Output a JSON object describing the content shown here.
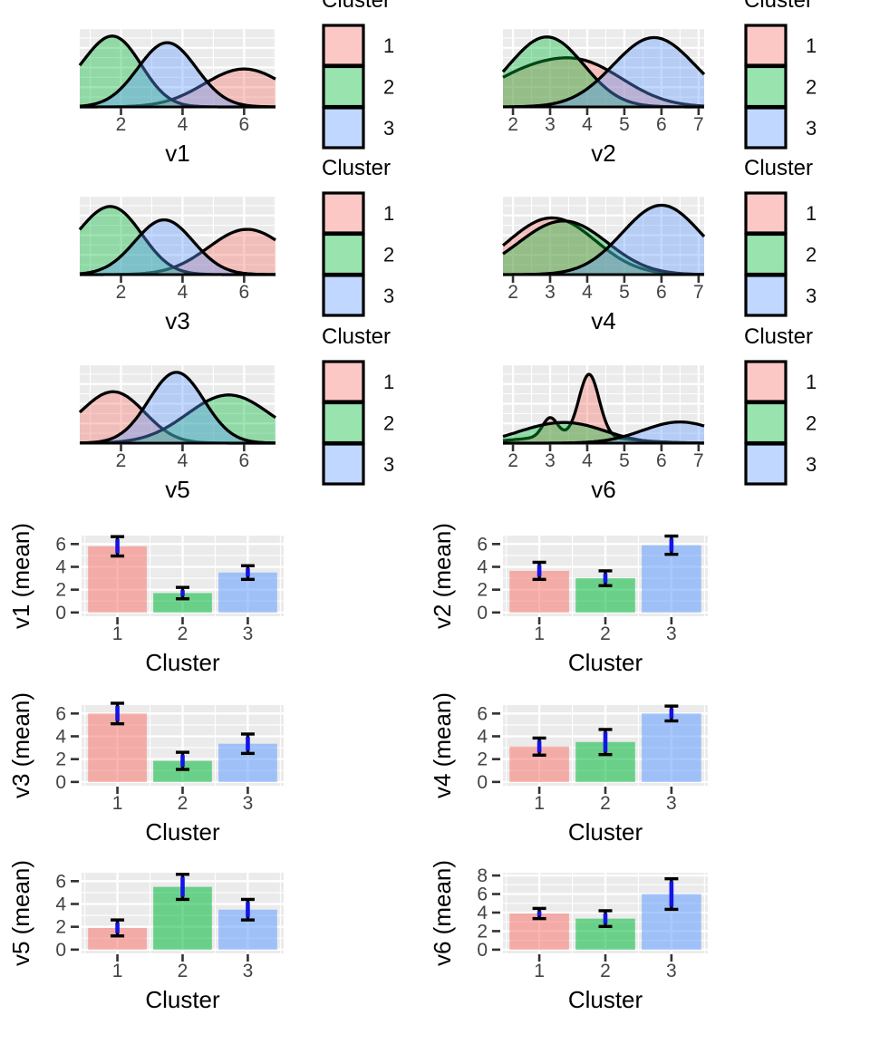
{
  "legend": {
    "title": "Cluster",
    "entries": [
      "1",
      "2",
      "3"
    ]
  },
  "theme": {
    "panel_bg": "#EBEBEB",
    "grid_color": "#FFFFFF",
    "tick_text_color": "#444444",
    "tick_mark_color": "#333333",
    "axis_title_color": "#000000",
    "curve_stroke": "#000000",
    "error_line_color": "#1414E6",
    "error_cap_color": "#000000",
    "cluster_colors": [
      "#F8766D",
      "#00BA38",
      "#619CFF"
    ],
    "density_fill_opacity": 0.38,
    "bar_fill_opacity": 0.55,
    "legend_fill_opacity": 0.4
  },
  "chart_data": [
    {
      "id": "v1",
      "type": "density",
      "xlabel": "v1",
      "col": "left",
      "row": 0,
      "xlim": [
        0.66,
        7.02
      ],
      "xticks": [
        2,
        4,
        6
      ],
      "legend": true,
      "series": [
        {
          "cluster": "1",
          "components": [
            {
              "m": 6.0,
              "s": 1.3,
              "w": 0.52
            }
          ]
        },
        {
          "cluster": "2",
          "components": [
            {
              "m": 1.9,
              "s": 0.85,
              "w": 0.8
            },
            {
              "m": 0.85,
              "s": 0.9,
              "w": 0.3
            }
          ]
        },
        {
          "cluster": "3",
          "components": [
            {
              "m": 3.5,
              "s": 0.95,
              "w": 0.88
            }
          ]
        }
      ]
    },
    {
      "id": "v2",
      "type": "density",
      "xlabel": "v2",
      "col": "right",
      "row": 0,
      "xlim": [
        1.73,
        7.15
      ],
      "xticks": [
        2,
        3,
        4,
        5,
        6,
        7
      ],
      "legend": true,
      "series": [
        {
          "cluster": "1",
          "components": [
            {
              "m": 3.8,
              "s": 1.2,
              "w": 0.6
            },
            {
              "m": 2.0,
              "s": 1.0,
              "w": 0.28
            }
          ]
        },
        {
          "cluster": "2",
          "components": [
            {
              "m": 3.0,
              "s": 0.95,
              "w": 0.9
            },
            {
              "m": 2.0,
              "s": 0.8,
              "w": 0.12
            }
          ]
        },
        {
          "cluster": "3",
          "components": [
            {
              "m": 5.8,
              "s": 1.1,
              "w": 0.95
            }
          ]
        }
      ]
    },
    {
      "id": "v3",
      "type": "density",
      "xlabel": "v3",
      "col": "left",
      "row": 1,
      "xlim": [
        0.66,
        7.02
      ],
      "xticks": [
        2,
        4,
        6
      ],
      "legend": true,
      "series": [
        {
          "cluster": "1",
          "components": [
            {
              "m": 6.1,
              "s": 1.25,
              "w": 0.62
            }
          ]
        },
        {
          "cluster": "2",
          "components": [
            {
              "m": 1.9,
              "s": 0.9,
              "w": 0.75
            },
            {
              "m": 0.8,
              "s": 0.9,
              "w": 0.33
            }
          ]
        },
        {
          "cluster": "3",
          "components": [
            {
              "m": 3.4,
              "s": 0.95,
              "w": 0.75
            }
          ]
        }
      ]
    },
    {
      "id": "v4",
      "type": "density",
      "xlabel": "v4",
      "col": "right",
      "row": 1,
      "xlim": [
        1.73,
        7.15
      ],
      "xticks": [
        2,
        3,
        4,
        5,
        6,
        7
      ],
      "legend": true,
      "series": [
        {
          "cluster": "1",
          "components": [
            {
              "m": 3.2,
              "s": 1.1,
              "w": 0.7
            },
            {
              "m": 2.2,
              "s": 0.9,
              "w": 0.13
            }
          ]
        },
        {
          "cluster": "2",
          "components": [
            {
              "m": 3.5,
              "s": 1.1,
              "w": 0.68
            },
            {
              "m": 2.3,
              "s": 0.9,
              "w": 0.12
            }
          ]
        },
        {
          "cluster": "3",
          "components": [
            {
              "m": 6.0,
              "s": 1.05,
              "w": 0.95
            }
          ]
        }
      ]
    },
    {
      "id": "v5",
      "type": "density",
      "xlabel": "v5",
      "col": "left",
      "row": 2,
      "xlim": [
        0.66,
        7.02
      ],
      "xticks": [
        2,
        4,
        6
      ],
      "legend": true,
      "series": [
        {
          "cluster": "1",
          "components": [
            {
              "m": 1.9,
              "s": 0.95,
              "w": 0.62
            },
            {
              "m": 0.8,
              "s": 0.9,
              "w": 0.16
            }
          ]
        },
        {
          "cluster": "2",
          "components": [
            {
              "m": 5.5,
              "s": 1.35,
              "w": 0.66
            }
          ]
        },
        {
          "cluster": "3",
          "components": [
            {
              "m": 3.8,
              "s": 0.9,
              "w": 0.97
            }
          ]
        }
      ]
    },
    {
      "id": "v6",
      "type": "density",
      "xlabel": "v6",
      "col": "right",
      "row": 2,
      "xlim": [
        1.73,
        7.15
      ],
      "xticks": [
        2,
        3,
        4,
        5,
        6,
        7
      ],
      "legend": true,
      "series": [
        {
          "cluster": "1",
          "components": [
            {
              "m": 4.05,
              "s": 0.27,
              "w": 0.85
            },
            {
              "m": 3.0,
              "s": 0.2,
              "w": 0.26
            },
            {
              "m": 3.6,
              "s": 1.3,
              "w": 0.1
            }
          ]
        },
        {
          "cluster": "2",
          "components": [
            {
              "m": 3.5,
              "s": 1.0,
              "w": 0.27
            },
            {
              "m": 2.3,
              "s": 0.7,
              "w": 0.05
            }
          ]
        },
        {
          "cluster": "3",
          "components": [
            {
              "m": 6.5,
              "s": 1.0,
              "w": 0.29
            }
          ]
        }
      ]
    },
    {
      "id": "v1_mean",
      "type": "bar",
      "ylabel": "v1 (mean)",
      "xlabel": "Cluster",
      "col": "left",
      "row": 0,
      "categories": [
        "1",
        "2",
        "3"
      ],
      "means": [
        5.8,
        1.7,
        3.5
      ],
      "errors": [
        0.85,
        0.5,
        0.6
      ],
      "yticks": [
        0,
        2,
        4,
        6
      ],
      "ylim": [
        -0.33,
        6.74
      ]
    },
    {
      "id": "v2_mean",
      "type": "bar",
      "ylabel": "v2 (mean)",
      "xlabel": "Cluster",
      "col": "right",
      "row": 0,
      "categories": [
        "1",
        "2",
        "3"
      ],
      "means": [
        3.65,
        3.0,
        5.9
      ],
      "errors": [
        0.75,
        0.65,
        0.8
      ],
      "yticks": [
        0,
        2,
        4,
        6
      ],
      "ylim": [
        -0.33,
        6.74
      ]
    },
    {
      "id": "v3_mean",
      "type": "bar",
      "ylabel": "v3 (mean)",
      "xlabel": "Cluster",
      "col": "left",
      "row": 1,
      "categories": [
        "1",
        "2",
        "3"
      ],
      "means": [
        6.0,
        1.85,
        3.35
      ],
      "errors": [
        0.9,
        0.75,
        0.85
      ],
      "yticks": [
        0,
        2,
        4,
        6
      ],
      "ylim": [
        -0.33,
        6.74
      ]
    },
    {
      "id": "v4_mean",
      "type": "bar",
      "ylabel": "v4 (mean)",
      "xlabel": "Cluster",
      "col": "right",
      "row": 1,
      "categories": [
        "1",
        "2",
        "3"
      ],
      "means": [
        3.1,
        3.5,
        6.0
      ],
      "errors": [
        0.75,
        1.1,
        0.65
      ],
      "yticks": [
        0,
        2,
        4,
        6
      ],
      "ylim": [
        -0.33,
        6.74
      ]
    },
    {
      "id": "v5_mean",
      "type": "bar",
      "ylabel": "v5 (mean)",
      "xlabel": "Cluster",
      "col": "left",
      "row": 2,
      "categories": [
        "1",
        "2",
        "3"
      ],
      "means": [
        1.9,
        5.5,
        3.5
      ],
      "errors": [
        0.7,
        1.1,
        0.9
      ],
      "yticks": [
        0,
        2,
        4,
        6
      ],
      "ylim": [
        -0.33,
        6.74
      ]
    },
    {
      "id": "v6_mean",
      "type": "bar",
      "ylabel": "v6 (mean)",
      "xlabel": "Cluster",
      "col": "right",
      "row": 2,
      "categories": [
        "1",
        "2",
        "3"
      ],
      "means": [
        3.9,
        3.35,
        6.0
      ],
      "errors": [
        0.55,
        0.85,
        1.65
      ],
      "yticks": [
        0,
        2,
        4,
        6,
        8
      ],
      "ylim": [
        -0.4,
        8.3
      ]
    }
  ]
}
